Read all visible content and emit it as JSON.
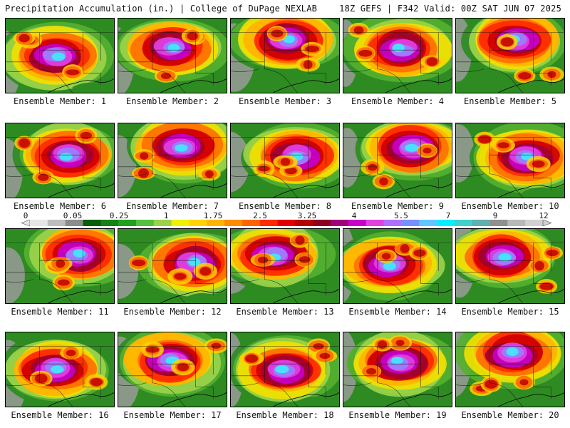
{
  "header": {
    "left": "Precipitation Accumulation (in.) | College of DuPage NEXLAB",
    "right": "18Z GEFS | F342 Valid: 00Z SAT JUN 07 2025"
  },
  "panels": [
    {
      "label": "Ensemble Member: 1"
    },
    {
      "label": "Ensemble Member: 2"
    },
    {
      "label": "Ensemble Member: 3"
    },
    {
      "label": "Ensemble Member: 4"
    },
    {
      "label": "Ensemble Member: 5"
    },
    {
      "label": "Ensemble Member: 6"
    },
    {
      "label": "Ensemble Member: 7"
    },
    {
      "label": "Ensemble Member: 8"
    },
    {
      "label": "Ensemble Member: 9"
    },
    {
      "label": "Ensemble Member: 10"
    },
    {
      "label": "Ensemble Member: 11"
    },
    {
      "label": "Ensemble Member: 12"
    },
    {
      "label": "Ensemble Member: 13"
    },
    {
      "label": "Ensemble Member: 14"
    },
    {
      "label": "Ensemble Member: 15"
    },
    {
      "label": "Ensemble Member: 16"
    },
    {
      "label": "Ensemble Member: 17"
    },
    {
      "label": "Ensemble Member: 18"
    },
    {
      "label": "Ensemble Member: 19"
    },
    {
      "label": "Ensemble Member: 20"
    }
  ],
  "colorbar": {
    "tick_labels": [
      "0",
      "0.05",
      "0.25",
      "1",
      "1.75",
      "2.5",
      "3.25",
      "4",
      "5.5",
      "7",
      "9",
      "12"
    ],
    "colors": [
      "#e6e6e6",
      "#bdbdbd",
      "#8c8c8c",
      "#0a5f0a",
      "#148214",
      "#22a022",
      "#55c040",
      "#9bd24a",
      "#f0f000",
      "#ffd200",
      "#ffb400",
      "#ff8c00",
      "#ff6400",
      "#ff2a00",
      "#e00000",
      "#b40000",
      "#8c0020",
      "#a0007a",
      "#c800c8",
      "#e040e0",
      "#b070ff",
      "#7890ff",
      "#60c8ff",
      "#00f0ff",
      "#40d0d0",
      "#60b0b0",
      "#909090",
      "#b8b8b8",
      "#d0d0d0"
    ]
  }
}
